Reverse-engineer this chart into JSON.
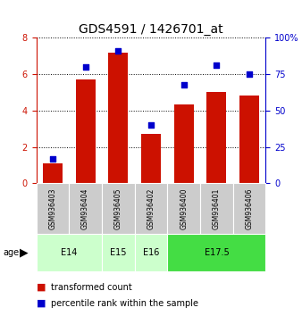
{
  "title": "GDS4591 / 1426701_at",
  "samples": [
    "GSM936403",
    "GSM936404",
    "GSM936405",
    "GSM936402",
    "GSM936400",
    "GSM936401",
    "GSM936406"
  ],
  "transformed_count": [
    1.1,
    5.7,
    7.2,
    2.7,
    4.35,
    5.05,
    4.85
  ],
  "percentile_rank": [
    17,
    80,
    91,
    40,
    68,
    81,
    75
  ],
  "bar_color": "#cc1100",
  "dot_color": "#0000cc",
  "ylim_left": [
    0,
    8
  ],
  "ylim_right": [
    0,
    100
  ],
  "yticks_left": [
    0,
    2,
    4,
    6,
    8
  ],
  "yticks_right": [
    0,
    25,
    50,
    75,
    100
  ],
  "age_groups": [
    {
      "label": "E14",
      "span": [
        0,
        2
      ],
      "color": "#ccffcc"
    },
    {
      "label": "E15",
      "span": [
        2,
        3
      ],
      "color": "#ccffcc"
    },
    {
      "label": "E16",
      "span": [
        3,
        4
      ],
      "color": "#ccffcc"
    },
    {
      "label": "E17.5",
      "span": [
        4,
        7
      ],
      "color": "#44dd44"
    }
  ],
  "legend_items": [
    {
      "label": "transformed count",
      "color": "#cc1100"
    },
    {
      "label": "percentile rank within the sample",
      "color": "#0000cc"
    }
  ],
  "sample_bg_color": "#cccccc",
  "title_fontsize": 10,
  "tick_fontsize": 7,
  "sample_fontsize": 5.5,
  "age_fontsize": 7,
  "legend_fontsize": 7
}
